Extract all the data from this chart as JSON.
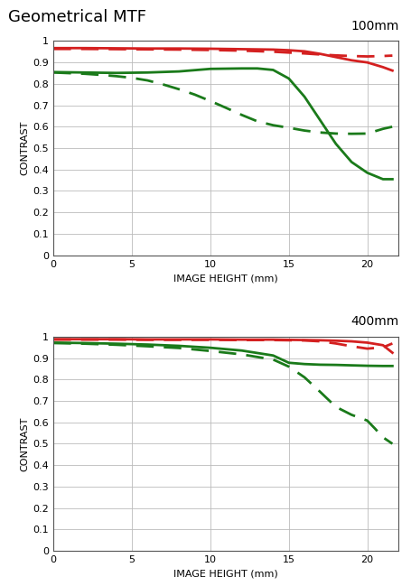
{
  "title": "Geometrical MTF",
  "background_color": "#ffffff",
  "chart1_label": "100mm",
  "chart2_label": "400mm",
  "xlabel": "IMAGE HEIGHT (mm)",
  "ylabel": "CONTRAST",
  "xlim": [
    0,
    22
  ],
  "ylim": [
    0,
    1.0
  ],
  "yticks": [
    0,
    0.1,
    0.2,
    0.3,
    0.4,
    0.5,
    0.6,
    0.7,
    0.8,
    0.9,
    1
  ],
  "xticks": [
    0,
    5,
    10,
    15,
    20
  ],
  "chart1": {
    "red_solid": {
      "x": [
        0,
        1,
        2,
        4,
        6,
        8,
        10,
        12,
        14,
        15,
        16,
        17,
        18,
        19,
        20,
        21,
        21.6
      ],
      "y": [
        0.967,
        0.967,
        0.967,
        0.966,
        0.965,
        0.965,
        0.964,
        0.962,
        0.96,
        0.957,
        0.952,
        0.94,
        0.925,
        0.91,
        0.9,
        0.878,
        0.862
      ]
    },
    "red_dashed": {
      "x": [
        0,
        1,
        2,
        4,
        6,
        8,
        10,
        12,
        14,
        15,
        16,
        17,
        18,
        19,
        20,
        21,
        21.6
      ],
      "y": [
        0.963,
        0.963,
        0.963,
        0.962,
        0.961,
        0.96,
        0.958,
        0.955,
        0.95,
        0.946,
        0.942,
        0.937,
        0.933,
        0.93,
        0.928,
        0.93,
        0.932
      ]
    },
    "green_solid": {
      "x": [
        0,
        1,
        2,
        4,
        6,
        8,
        10,
        12,
        13,
        14,
        15,
        16,
        17,
        18,
        19,
        20,
        21,
        21.6
      ],
      "y": [
        0.855,
        0.854,
        0.853,
        0.851,
        0.853,
        0.858,
        0.87,
        0.872,
        0.872,
        0.865,
        0.825,
        0.74,
        0.63,
        0.52,
        0.435,
        0.385,
        0.355,
        0.355
      ]
    },
    "green_dashed": {
      "x": [
        0,
        1,
        2,
        3,
        4,
        5,
        6,
        7,
        8,
        9,
        10,
        11,
        12,
        13,
        14,
        15,
        16,
        17,
        18,
        19,
        20,
        21,
        21.6
      ],
      "y": [
        0.853,
        0.85,
        0.847,
        0.842,
        0.836,
        0.828,
        0.816,
        0.797,
        0.775,
        0.75,
        0.72,
        0.688,
        0.655,
        0.625,
        0.607,
        0.595,
        0.582,
        0.573,
        0.568,
        0.567,
        0.568,
        0.59,
        0.6
      ]
    }
  },
  "chart2": {
    "red_solid": {
      "x": [
        0,
        2,
        4,
        6,
        8,
        10,
        12,
        14,
        15,
        16,
        17,
        18,
        19,
        20,
        21,
        21.6
      ],
      "y": [
        0.988,
        0.988,
        0.988,
        0.987,
        0.987,
        0.987,
        0.986,
        0.986,
        0.985,
        0.984,
        0.983,
        0.981,
        0.978,
        0.972,
        0.96,
        0.925
      ]
    },
    "red_dashed": {
      "x": [
        0,
        2,
        4,
        6,
        8,
        10,
        12,
        14,
        15,
        16,
        17,
        18,
        19,
        20,
        21,
        21.6
      ],
      "y": [
        0.986,
        0.986,
        0.986,
        0.985,
        0.985,
        0.985,
        0.984,
        0.984,
        0.983,
        0.982,
        0.978,
        0.968,
        0.955,
        0.944,
        0.95,
        0.968
      ]
    },
    "green_solid": {
      "x": [
        0,
        2,
        4,
        6,
        8,
        10,
        12,
        14,
        15,
        16,
        17,
        18,
        19,
        20,
        21,
        21.6
      ],
      "y": [
        0.972,
        0.97,
        0.967,
        0.963,
        0.957,
        0.948,
        0.935,
        0.912,
        0.878,
        0.872,
        0.869,
        0.868,
        0.866,
        0.864,
        0.863,
        0.863
      ]
    },
    "green_dashed": {
      "x": [
        0,
        2,
        4,
        6,
        8,
        10,
        12,
        14,
        15,
        16,
        17,
        18,
        19,
        20,
        20.5,
        21,
        21.6
      ],
      "y": [
        0.97,
        0.967,
        0.962,
        0.955,
        0.947,
        0.933,
        0.917,
        0.893,
        0.86,
        0.81,
        0.742,
        0.672,
        0.635,
        0.608,
        0.57,
        0.53,
        0.5
      ]
    }
  },
  "red_color": "#d42020",
  "green_color": "#1a7a1a",
  "linewidth": 2.0,
  "dash_pattern": [
    7,
    4
  ],
  "grid_color": "#bbbbbb",
  "title_fontsize": 13,
  "label_fontsize": 8,
  "chart_label_fontsize": 10,
  "tick_fontsize": 8
}
